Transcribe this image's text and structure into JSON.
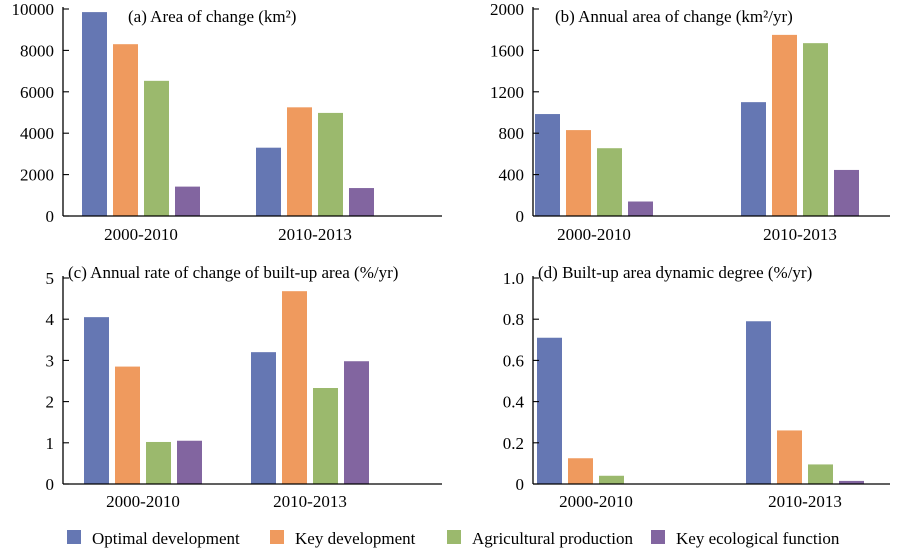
{
  "chart_data": [
    {
      "type": "bar",
      "title": "(a) Area of change (km²)",
      "categories": [
        "2000-2010",
        "2010-2013"
      ],
      "ylim": [
        0,
        10000
      ],
      "yticks": [
        0,
        2000,
        4000,
        6000,
        8000,
        10000
      ],
      "series": [
        {
          "name": "Optimal development",
          "values": [
            9850,
            3300
          ]
        },
        {
          "name": "Key development",
          "values": [
            8300,
            5250
          ]
        },
        {
          "name": "Agricultural production",
          "values": [
            6530,
            4980
          ]
        },
        {
          "name": "Key ecological function",
          "values": [
            1420,
            1350
          ]
        }
      ]
    },
    {
      "type": "bar",
      "title": "(b) Annual area of change (km²/yr)",
      "categories": [
        "2000-2010",
        "2010-2013"
      ],
      "ylim": [
        0,
        2000
      ],
      "yticks": [
        0,
        400,
        800,
        1200,
        1600,
        2000
      ],
      "series": [
        {
          "name": "Optimal development",
          "values": [
            985,
            1100
          ]
        },
        {
          "name": "Key development",
          "values": [
            830,
            1750
          ]
        },
        {
          "name": "Agricultural production",
          "values": [
            655,
            1670
          ]
        },
        {
          "name": "Key ecological function",
          "values": [
            140,
            445
          ]
        }
      ]
    },
    {
      "type": "bar",
      "title": "(c) Annual rate of change of built-up area (%/yr)",
      "categories": [
        "2000-2010",
        "2010-2013"
      ],
      "ylim": [
        0,
        5
      ],
      "yticks": [
        0,
        1,
        2,
        3,
        4,
        5
      ],
      "series": [
        {
          "name": "Optimal development",
          "values": [
            4.05,
            3.2
          ]
        },
        {
          "name": "Key development",
          "values": [
            2.85,
            4.68
          ]
        },
        {
          "name": "Agricultural production",
          "values": [
            1.02,
            2.33
          ]
        },
        {
          "name": "Key ecological function",
          "values": [
            1.05,
            2.98
          ]
        }
      ]
    },
    {
      "type": "bar",
      "title": "(d) Built-up area dynamic degree (%/yr)",
      "categories": [
        "2000-2010",
        "2010-2013"
      ],
      "ylim": [
        0,
        1.0
      ],
      "yticks": [
        0,
        0.2,
        0.4,
        0.6,
        0.8,
        1.0
      ],
      "ytick_labels": [
        "0",
        "0.2",
        "0.4",
        "0.6",
        "0.8",
        "1.0"
      ],
      "series": [
        {
          "name": "Optimal development",
          "values": [
            0.71,
            0.79
          ]
        },
        {
          "name": "Key development",
          "values": [
            0.125,
            0.26
          ]
        },
        {
          "name": "Agricultural production",
          "values": [
            0.04,
            0.095
          ]
        },
        {
          "name": "Key ecological function",
          "values": [
            0.0,
            0.015
          ]
        }
      ]
    }
  ],
  "legend": {
    "placement": "bottom",
    "items": [
      {
        "label": "Optimal development",
        "color": "#6577b3"
      },
      {
        "label": "Key development",
        "color": "#ef9a5e"
      },
      {
        "label": "Agricultural production",
        "color": "#9bb96d"
      },
      {
        "label": "Key ecological function",
        "color": "#8265a0"
      }
    ]
  }
}
